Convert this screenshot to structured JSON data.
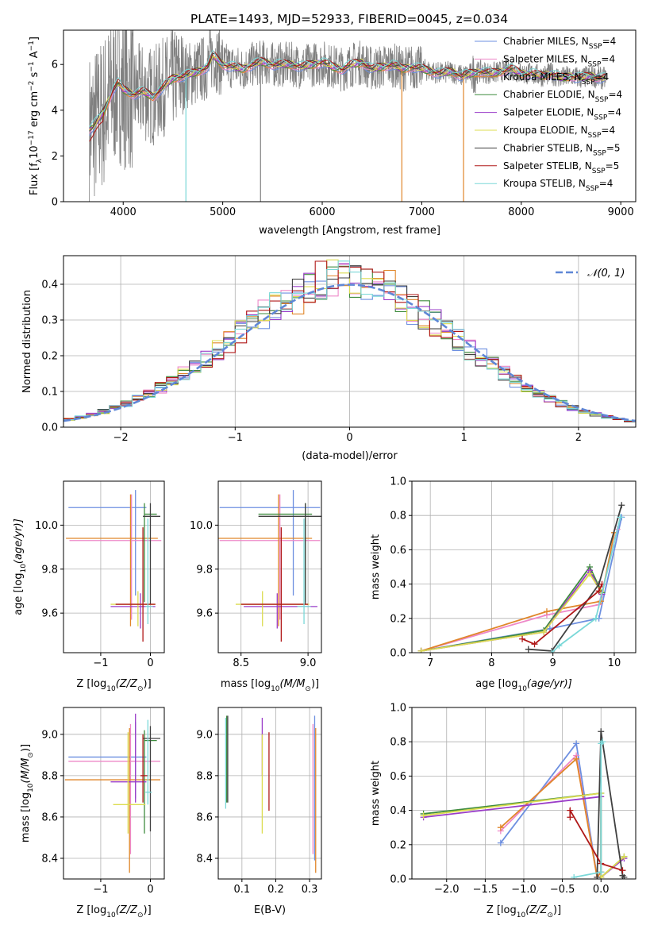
{
  "figure": {
    "title": "PLATE=1493, MJD=52933, FIBERID=0045, z=0.034",
    "series_colors": [
      "#6d8fe0",
      "#ee88c8",
      "#e0862a",
      "#3f8c3f",
      "#9a3cc8",
      "#dcdc50",
      "#404040",
      "#b01818",
      "#7ad8d8"
    ]
  },
  "chart_data": [
    {
      "id": "spectrum",
      "type": "line",
      "xlabel": "wavelength [Angstrom, rest frame]",
      "ylabel": "Flux [f",
      "ylabel_sub": "λ",
      "ylabel_rest": "10",
      "ylabel_sup": "−17",
      "ylabel_tail": " erg cm",
      "ylabel_sup2": "−2",
      "ylabel_tail2": " s",
      "ylabel_sup3": "−1",
      "ylabel_tail3": " A",
      "ylabel_sup4": "−1",
      "ylabel_end": "]",
      "xlim": [
        3400,
        9150
      ],
      "ylim": [
        0,
        7.5
      ],
      "xticks": [
        4000,
        5000,
        6000,
        7000,
        8000,
        9000
      ],
      "yticks": [
        0,
        2,
        4,
        6
      ],
      "legend_position": "upper right",
      "series": [
        {
          "label": "Chabrier MILES, N",
          "sub": "SSP",
          "suffix": "=4"
        },
        {
          "label": "Salpeter MILES, N",
          "sub": "SSP",
          "suffix": "=4"
        },
        {
          "label": "Kroupa MILES, N",
          "sub": "SSP",
          "suffix": "=4"
        },
        {
          "label": "Chabrier ELODIE, N",
          "sub": "SSP",
          "suffix": "=4"
        },
        {
          "label": "Salpeter ELODIE, N",
          "sub": "SSP",
          "suffix": "=4"
        },
        {
          "label": "Kroupa ELODIE, N",
          "sub": "SSP",
          "suffix": "=4"
        },
        {
          "label": "Chabrier STELIB, N",
          "sub": "SSP",
          "suffix": "=5"
        },
        {
          "label": "Salpeter STELIB, N",
          "sub": "SSP",
          "suffix": "=5"
        },
        {
          "label": "Kroupa STELIB, N",
          "sub": "SSP",
          "suffix": "=4"
        }
      ],
      "model_curve": {
        "x": [
          3650,
          3700,
          3750,
          3800,
          3850,
          3900,
          3950,
          4000,
          4100,
          4200,
          4300,
          4400,
          4500,
          4600,
          4700,
          4800,
          4850,
          4900,
          5000,
          5100,
          5200,
          5300,
          5400,
          5500,
          5600,
          5700,
          5800,
          5900,
          6000,
          6100,
          6200,
          6300,
          6400,
          6500,
          6600,
          6700,
          6800,
          6900,
          7000,
          7100,
          7200,
          7300,
          7400,
          7500,
          7600,
          7700,
          7800,
          7900,
          8000,
          8100,
          8200,
          8300,
          8400,
          8500,
          8600,
          8700,
          8800
        ],
        "y": [
          3.1,
          3.3,
          3.6,
          3.9,
          4.4,
          4.9,
          5.2,
          4.9,
          4.7,
          4.8,
          4.6,
          5.0,
          5.4,
          5.5,
          5.6,
          5.8,
          5.9,
          6.4,
          6.0,
          5.9,
          5.8,
          6.0,
          6.1,
          6.0,
          6.0,
          6.0,
          5.9,
          6.0,
          6.1,
          5.9,
          5.8,
          6.0,
          6.1,
          5.8,
          5.9,
          6.0,
          5.8,
          5.9,
          5.8,
          5.7,
          5.6,
          5.7,
          5.5,
          5.6,
          5.7,
          5.6,
          5.7,
          5.8,
          5.6,
          5.6,
          5.5,
          5.6,
          5.4,
          5.5,
          5.4,
          5.5,
          5.4
        ]
      },
      "data_spike_x": [
        4630,
        5380,
        6800,
        7420
      ]
    },
    {
      "id": "residuals",
      "type": "histogram",
      "xlabel": "(data-model)/error",
      "ylabel": "Normed distribution",
      "xlim": [
        -2.5,
        2.5
      ],
      "ylim": [
        0,
        0.48
      ],
      "xticks": [
        -2,
        -1,
        0,
        1,
        2
      ],
      "yticks": [
        0.0,
        0.1,
        0.2,
        0.3,
        0.4
      ],
      "legend_label": "𝒩(0, 1)",
      "legend_position": "upper right",
      "bin_width": 0.1,
      "bin_start": -2.5,
      "normal_curve": {
        "mean": 0,
        "sigma": 1
      }
    },
    {
      "id": "age-vs-Z",
      "type": "errorbar",
      "xlabel": "Z [log",
      "xlabel_sub": "10",
      "xlabel_tail": "(Z/Z",
      "xlabel_sub2": "⊙",
      "xlabel_end": ")]",
      "ylabel": "age  [log",
      "ylabel_sub": "10",
      "ylabel_tail": "(age/yr)]",
      "xlim": [
        -1.75,
        0.28
      ],
      "ylim": [
        9.42,
        10.2
      ],
      "xticks": [
        -1,
        0
      ],
      "yticks": [
        9.6,
        9.8,
        10.0
      ],
      "points": [
        {
          "x": -0.3,
          "y": 10.08,
          "xerr": [
            1.35,
            0.22
          ],
          "yerr": [
            0.4,
            0.08
          ]
        },
        {
          "x": -0.38,
          "y": 9.93,
          "xerr": [
            1.25,
            0.6
          ],
          "yerr": [
            0.36,
            0.21
          ]
        },
        {
          "x": -0.4,
          "y": 9.94,
          "xerr": [
            1.3,
            0.55
          ],
          "yerr": [
            0.4,
            0.2
          ]
        },
        {
          "x": -0.12,
          "y": 10.05,
          "xerr": [
            0.0,
            0.25
          ],
          "yerr": [
            0.4,
            0.05
          ]
        },
        {
          "x": -0.2,
          "y": 9.63,
          "xerr": [
            0.6,
            0.3
          ],
          "yerr": [
            0.1,
            0.06
          ]
        },
        {
          "x": -0.25,
          "y": 9.64,
          "xerr": [
            0.55,
            0.35
          ],
          "yerr": [
            0.1,
            0.06
          ]
        },
        {
          "x": 0.0,
          "y": 10.04,
          "xerr": [
            0.15,
            0.2
          ],
          "yerr": [
            0.4,
            0.06
          ]
        },
        {
          "x": -0.15,
          "y": 9.64,
          "xerr": [
            0.55,
            0.25
          ],
          "yerr": [
            0.17,
            0.35
          ]
        },
        {
          "x": -0.05,
          "y": 9.63,
          "xerr": [
            0.05,
            0.1
          ],
          "yerr": [
            0.08,
            0.4
          ]
        }
      ]
    },
    {
      "id": "age-vs-mass",
      "type": "errorbar",
      "xlabel": "mass [log",
      "xlabel_sub": "10",
      "xlabel_tail": "(M/M",
      "xlabel_sub2": "⊙",
      "xlabel_end": ")]",
      "xlim": [
        8.33,
        9.1
      ],
      "ylim": [
        9.42,
        10.2
      ],
      "xticks": [
        8.5,
        9.0
      ],
      "yticks": [
        9.6,
        9.8,
        10.0
      ],
      "points": [
        {
          "x": 8.89,
          "y": 10.08,
          "xerr": [
            0.55,
            0.2
          ],
          "yerr": [
            0.4,
            0.08
          ]
        },
        {
          "x": 8.79,
          "y": 9.93,
          "xerr": [
            0.45,
            0.3
          ],
          "yerr": [
            0.36,
            0.21
          ]
        },
        {
          "x": 8.78,
          "y": 9.94,
          "xerr": [
            0.45,
            0.25
          ],
          "yerr": [
            0.4,
            0.2
          ]
        },
        {
          "x": 8.98,
          "y": 10.05,
          "xerr": [
            0.35,
            0.05
          ],
          "yerr": [
            0.4,
            0.05
          ]
        },
        {
          "x": 8.77,
          "y": 9.63,
          "xerr": [
            0.25,
            0.3
          ],
          "yerr": [
            0.1,
            0.06
          ]
        },
        {
          "x": 8.66,
          "y": 9.64,
          "xerr": [
            0.2,
            0.35
          ],
          "yerr": [
            0.1,
            0.06
          ]
        },
        {
          "x": 8.98,
          "y": 10.04,
          "xerr": [
            0.35,
            0.2
          ],
          "yerr": [
            0.4,
            0.06
          ]
        },
        {
          "x": 8.8,
          "y": 9.64,
          "xerr": [
            0.3,
            0.2
          ],
          "yerr": [
            0.17,
            0.35
          ]
        },
        {
          "x": 8.97,
          "y": 9.63,
          "xerr": [
            0.05,
            0.05
          ],
          "yerr": [
            0.08,
            0.4
          ]
        }
      ]
    },
    {
      "id": "massweight-vs-age",
      "type": "line",
      "xlabel": "age  [log",
      "xlabel_sub": "10",
      "xlabel_tail": "(age/yr)]",
      "ylabel": "mass weight",
      "xlim": [
        6.7,
        10.35
      ],
      "ylim": [
        0,
        1.0
      ],
      "xticks": [
        7,
        8,
        9,
        10
      ],
      "yticks": [
        0.0,
        0.2,
        0.4,
        0.6,
        0.8,
        1.0
      ],
      "series": [
        {
          "x": [
            6.85,
            8.95,
            9.75,
            10.12
          ],
          "y": [
            0.01,
            0.14,
            0.2,
            0.79
          ]
        },
        {
          "x": [
            6.85,
            8.9,
            9.75,
            10.05
          ],
          "y": [
            0.01,
            0.22,
            0.28,
            0.72
          ]
        },
        {
          "x": [
            6.85,
            8.9,
            9.78,
            10.0
          ],
          "y": [
            0.01,
            0.24,
            0.3,
            0.7
          ]
        },
        {
          "x": [
            6.85,
            8.85,
            9.6,
            9.8
          ],
          "y": [
            0.01,
            0.13,
            0.5,
            0.35
          ]
        },
        {
          "x": [
            6.85,
            8.85,
            9.6,
            9.8
          ],
          "y": [
            0.01,
            0.12,
            0.48,
            0.34
          ]
        },
        {
          "x": [
            6.85,
            8.85,
            9.6,
            9.78
          ],
          "y": [
            0.01,
            0.12,
            0.46,
            0.36
          ]
        },
        {
          "x": [
            8.6,
            8.98,
            9.75,
            10.12
          ],
          "y": [
            0.02,
            0.01,
            0.4,
            0.86
          ]
        },
        {
          "x": [
            8.5,
            8.7,
            9.75,
            9.8
          ],
          "y": [
            0.08,
            0.05,
            0.36,
            0.4
          ]
        },
        {
          "x": [
            8.98,
            9.1,
            9.7,
            10.1
          ],
          "y": [
            0.0,
            0.04,
            0.2,
            0.79
          ]
        }
      ]
    },
    {
      "id": "mass-vs-Z",
      "type": "errorbar",
      "xlabel": "Z [log",
      "xlabel_sub": "10",
      "xlabel_tail": "(Z/Z",
      "xlabel_sub2": "⊙",
      "xlabel_end": ")]",
      "ylabel": "mass [log",
      "ylabel_sub": "10",
      "ylabel_tail": "(M/M",
      "ylabel_sub2": "⊙",
      "ylabel_end": ")]",
      "xlim": [
        -1.75,
        0.28
      ],
      "ylim": [
        8.3,
        9.13
      ],
      "xticks": [
        -1,
        0
      ],
      "yticks": [
        8.4,
        8.6,
        8.8,
        9.0
      ],
      "points": [
        {
          "x": -0.3,
          "y": 8.89,
          "xerr": [
            1.35,
            0.22
          ],
          "yerr": [
            0.2,
            0.17
          ]
        },
        {
          "x": -0.4,
          "y": 8.87,
          "xerr": [
            1.25,
            0.6
          ],
          "yerr": [
            0.45,
            0.18
          ]
        },
        {
          "x": -0.42,
          "y": 8.78,
          "xerr": [
            1.3,
            0.62
          ],
          "yerr": [
            0.45,
            0.25
          ]
        },
        {
          "x": -0.12,
          "y": 8.97,
          "xerr": [
            0.0,
            0.25
          ],
          "yerr": [
            0.45,
            0.05
          ]
        },
        {
          "x": -0.3,
          "y": 8.77,
          "xerr": [
            0.5,
            0.22
          ],
          "yerr": [
            0.1,
            0.33
          ]
        },
        {
          "x": -0.45,
          "y": 8.66,
          "xerr": [
            0.3,
            0.35
          ],
          "yerr": [
            0.14,
            0.35
          ]
        },
        {
          "x": 0.0,
          "y": 8.98,
          "xerr": [
            0.15,
            0.2
          ],
          "yerr": [
            0.45,
            0.06
          ]
        },
        {
          "x": -0.15,
          "y": 8.8,
          "xerr": [
            0.05,
            0.1
          ],
          "yerr": [
            0.13,
            0.2
          ]
        },
        {
          "x": -0.05,
          "y": 8.72,
          "xerr": [
            0.05,
            0.08
          ],
          "yerr": [
            0.06,
            0.35
          ]
        }
      ]
    },
    {
      "id": "mass-vs-EBV",
      "type": "errorbar",
      "xlabel": "E(B-V)",
      "xlim": [
        0.03,
        0.335
      ],
      "ylim": [
        8.3,
        9.13
      ],
      "xticks": [
        0.1,
        0.2,
        0.3
      ],
      "yticks": [
        8.4,
        8.6,
        8.8,
        9.0
      ],
      "points": [
        {
          "x": 0.315,
          "y": 8.89,
          "xerr": [
            0,
            0
          ],
          "yerr": [
            0.5,
            0.2
          ]
        },
        {
          "x": 0.31,
          "y": 8.87,
          "xerr": [
            0,
            0
          ],
          "yerr": [
            0.45,
            0.18
          ]
        },
        {
          "x": 0.318,
          "y": 8.78,
          "xerr": [
            0,
            0
          ],
          "yerr": [
            0.45,
            0.25
          ]
        },
        {
          "x": 0.055,
          "y": 8.97,
          "xerr": [
            0,
            0
          ],
          "yerr": [
            0.3,
            0.12
          ]
        },
        {
          "x": 0.16,
          "y": 8.93,
          "xerr": [
            0,
            0
          ],
          "yerr": [
            0.13,
            0.15
          ]
        },
        {
          "x": 0.16,
          "y": 8.75,
          "xerr": [
            0,
            0
          ],
          "yerr": [
            0.23,
            0.25
          ]
        },
        {
          "x": 0.058,
          "y": 8.88,
          "xerr": [
            0,
            0
          ],
          "yerr": [
            0.21,
            0.21
          ]
        },
        {
          "x": 0.18,
          "y": 8.82,
          "xerr": [
            0,
            0
          ],
          "yerr": [
            0.19,
            0.19
          ]
        },
        {
          "x": 0.052,
          "y": 8.86,
          "xerr": [
            0,
            0
          ],
          "yerr": [
            0.22,
            0.22
          ]
        }
      ]
    },
    {
      "id": "massweight-vs-Z",
      "type": "line",
      "xlabel": "Z [log",
      "xlabel_sub": "10",
      "xlabel_tail": "(Z/Z",
      "xlabel_sub2": "⊙",
      "xlabel_end": ")]",
      "ylabel": "mass weight",
      "xlim": [
        -2.45,
        0.45
      ],
      "ylim": [
        0,
        1.0
      ],
      "xticks": [
        -2.0,
        -1.5,
        -1.0,
        -0.5,
        0.0
      ],
      "yticks": [
        0.0,
        0.2,
        0.4,
        0.6,
        0.8,
        1.0
      ],
      "series": [
        {
          "x": [
            -1.3,
            -0.32,
            -0.05,
            0.0
          ],
          "y": [
            0.21,
            0.79,
            0.01,
            0.04
          ]
        },
        {
          "x": [
            -1.3,
            -0.32,
            -0.05,
            0.0
          ],
          "y": [
            0.28,
            0.72,
            0.01,
            0.04
          ]
        },
        {
          "x": [
            -1.3,
            -0.32,
            -0.05,
            0.0
          ],
          "y": [
            0.3,
            0.7,
            0.01,
            0.04
          ]
        },
        {
          "x": [
            -2.3,
            0.0,
            0.0,
            0.3
          ],
          "y": [
            0.38,
            0.5,
            0.01,
            0.13
          ]
        },
        {
          "x": [
            -2.3,
            0.0,
            0.0,
            0.3
          ],
          "y": [
            0.36,
            0.48,
            0.01,
            0.12
          ]
        },
        {
          "x": [
            -2.3,
            0.0,
            0.0,
            0.3
          ],
          "y": [
            0.37,
            0.5,
            0.01,
            0.13
          ]
        },
        {
          "x": [
            -0.05,
            0.0,
            0.28,
            0.3
          ],
          "y": [
            0.01,
            0.86,
            0.02,
            0.01
          ]
        },
        {
          "x": [
            -0.4,
            -0.4,
            0.0,
            0.28
          ],
          "y": [
            0.36,
            0.4,
            0.09,
            0.05
          ]
        },
        {
          "x": [
            -0.35,
            0.0,
            0.0,
            0.02
          ],
          "y": [
            0.01,
            0.04,
            0.79,
            0.8
          ]
        }
      ]
    }
  ]
}
